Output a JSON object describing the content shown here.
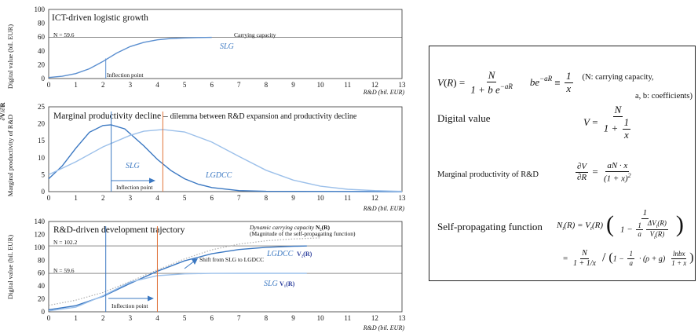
{
  "chart_data": [
    {
      "type": "line",
      "title": "ICT-driven logistic growth",
      "ylabel": "Digital value (bil. EUR)",
      "xlabel": "R&D (bil. EUR)",
      "ylim": [
        0,
        100
      ],
      "xlim": [
        0,
        13
      ],
      "y_ticks": [
        "0",
        "20",
        "40",
        "60",
        "80",
        "100"
      ],
      "x_ticks": [
        "0",
        "1",
        "2",
        "3",
        "4",
        "5",
        "6",
        "7",
        "8",
        "9",
        "10",
        "11",
        "12",
        "13"
      ],
      "hline": {
        "y": 59.6,
        "label": "N = 59.6"
      },
      "carrying_capacity_label": "Carrying capacity",
      "series": [
        {
          "name": "SLG",
          "color": "#5b8fd0",
          "points": [
            [
              0.0,
              1.5
            ],
            [
              0.5,
              3.3
            ],
            [
              1.0,
              7.2
            ],
            [
              1.5,
              14.2
            ],
            [
              2.0,
              24.8
            ],
            [
              2.5,
              36.8
            ],
            [
              3.0,
              46.2
            ],
            [
              3.5,
              52.4
            ],
            [
              4.0,
              56.0
            ],
            [
              4.5,
              57.9
            ],
            [
              5.0,
              58.8
            ],
            [
              5.5,
              59.3
            ],
            [
              6.0,
              59.5
            ]
          ]
        }
      ],
      "marker": {
        "x": 2.1,
        "y_top": 29,
        "label": "Inflection point"
      }
    },
    {
      "type": "line",
      "title": "Marginal productivity decline",
      "title_suffix": "dilemma between R&D expansion and productivity decline",
      "ylabel": "Marginal productivity of R&D",
      "ylabel_symbol": "∂V/∂R",
      "xlabel": "R&D (bil. EUR)",
      "ylim": [
        0,
        25
      ],
      "xlim": [
        0,
        13
      ],
      "y_ticks": [
        "0",
        "5",
        "10",
        "15",
        "20",
        "25"
      ],
      "x_ticks": [
        "0",
        "1",
        "2",
        "3",
        "4",
        "5",
        "6",
        "7",
        "8",
        "9",
        "10",
        "11",
        "12",
        "13"
      ],
      "series": [
        {
          "name": "SLG",
          "color": "#3b78c2",
          "points": [
            [
              0.0,
              3.8
            ],
            [
              0.5,
              7.6
            ],
            [
              1.0,
              12.8
            ],
            [
              1.5,
              17.5
            ],
            [
              2.0,
              19.5
            ],
            [
              2.3,
              19.7
            ],
            [
              2.8,
              18.5
            ],
            [
              3.5,
              13.5
            ],
            [
              4.0,
              9.5
            ],
            [
              4.5,
              6.2
            ],
            [
              5.0,
              3.8
            ],
            [
              5.5,
              2.2
            ],
            [
              6.0,
              1.2
            ],
            [
              7.0,
              0.3
            ],
            [
              8.0,
              0.1
            ],
            [
              13.0,
              0.0
            ]
          ]
        },
        {
          "name": "LGDCC",
          "color": "#9cc0ea",
          "points": [
            [
              0.0,
              5.0
            ],
            [
              1.0,
              8.8
            ],
            [
              2.0,
              13.2
            ],
            [
              3.0,
              16.6
            ],
            [
              3.5,
              17.8
            ],
            [
              4.2,
              18.3
            ],
            [
              5.0,
              17.6
            ],
            [
              6.0,
              14.6
            ],
            [
              7.0,
              10.4
            ],
            [
              8.0,
              6.3
            ],
            [
              9.0,
              3.4
            ],
            [
              10.0,
              1.6
            ],
            [
              11.0,
              0.7
            ],
            [
              12.0,
              0.3
            ],
            [
              13.0,
              0.1
            ]
          ]
        }
      ],
      "markers": [
        {
          "x": 2.3,
          "color": "#3b78c2"
        },
        {
          "x": 4.2,
          "color": "#e0733a"
        }
      ],
      "annotation": "Inflection point"
    },
    {
      "type": "line",
      "title": "R&D-driven development trajectory",
      "ylabel": "Digital value (bil. EUR)",
      "xlabel": "R&D (bil. EUR)",
      "ylim": [
        0,
        140
      ],
      "xlim": [
        0,
        13
      ],
      "y_ticks": [
        "0",
        "20",
        "40",
        "60",
        "80",
        "100",
        "120",
        "140"
      ],
      "x_ticks": [
        "0",
        "1",
        "2",
        "3",
        "4",
        "5",
        "6",
        "7",
        "8",
        "9",
        "10",
        "11",
        "12",
        "13"
      ],
      "hlines": [
        {
          "y": 102.2,
          "label": "N = 102.2"
        },
        {
          "y": 59.6,
          "label": "N = 59.6"
        }
      ],
      "series": [
        {
          "name": "Dynamic carrying capacity",
          "style": "dotted",
          "color": "#b0b0b0",
          "points": [
            [
              0.0,
              10.0
            ],
            [
              1.0,
              18.0
            ],
            [
              2.0,
              30.0
            ],
            [
              3.0,
              47.0
            ],
            [
              4.0,
              65.0
            ],
            [
              5.0,
              82.0
            ],
            [
              6.0,
              96.0
            ],
            [
              7.0,
              105.0
            ],
            [
              8.0,
              110.0
            ],
            [
              9.0,
              113.0
            ],
            [
              10.0,
              114.5
            ]
          ]
        },
        {
          "name": "LGDCC",
          "color": "#3b78c2",
          "points": [
            [
              0.0,
              3.0
            ],
            [
              1.0,
              9.5
            ],
            [
              2.0,
              24.0
            ],
            [
              3.0,
              44.0
            ],
            [
              4.0,
              63.0
            ],
            [
              5.0,
              79.0
            ],
            [
              6.0,
              90.0
            ],
            [
              7.0,
              96.5
            ],
            [
              8.0,
              100.0
            ],
            [
              9.0,
              101.5
            ],
            [
              9.5,
              102.0
            ]
          ]
        },
        {
          "name": "SLG",
          "color": "#9cc0ea",
          "points": [
            [
              0.0,
              1.5
            ],
            [
              1.0,
              7.2
            ],
            [
              2.0,
              24.8
            ],
            [
              3.0,
              46.2
            ],
            [
              4.0,
              56.0
            ],
            [
              5.0,
              58.8
            ],
            [
              6.0,
              59.5
            ],
            [
              7.0,
              59.6
            ],
            [
              9.5,
              59.6
            ]
          ]
        }
      ],
      "markers": [
        {
          "x": 2.1,
          "color": "#3b78c2"
        },
        {
          "x": 4.0,
          "color": "#e0733a"
        }
      ],
      "dynamic_cc_label": "Dynamic carrying capacity",
      "dynamic_cc_symbol": "N₂(R)",
      "dynamic_cc_note": "(Magnitude of the self-propagating function)",
      "shift_label": "Shift from SLG to LGDCC",
      "lgdcc_label": "LGDCC",
      "lgdcc_symbol": "V₂(R)",
      "slg_label": "SLG",
      "slg_symbol": "V₁(R)",
      "annotation": "Inflection point"
    }
  ],
  "formula_panel": {
    "note_line1": "(N: carrying capacity,",
    "note_line2": "a, b: coefficients)",
    "digital_value_label": "Digital value",
    "marginal_label": "Marginal productivity of R&D",
    "self_prop_label": "Self-propagating function"
  }
}
